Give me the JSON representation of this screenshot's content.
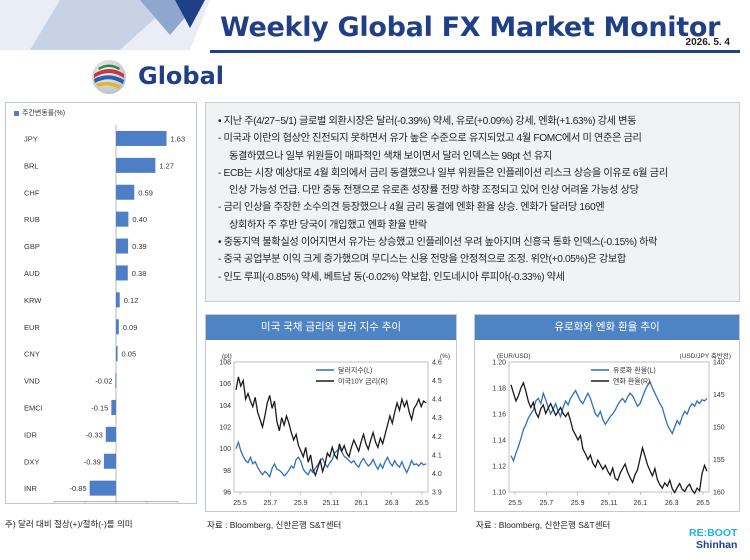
{
  "header": {
    "title": "Weekly Global FX Market Monitor",
    "date": "2026. 5. 4"
  },
  "section": {
    "title": "Global"
  },
  "summary": {
    "lines": [
      {
        "style": "lead",
        "text": "지난 주(4/27~5/1) 글로벌 외환시장은 달러(-0.39%) 약세, 유로(+0.09%) 강세, 엔화(+1.63%) 강세 변동"
      },
      {
        "style": "dash",
        "text": "미국과 이란의 협상안 진전되지 못하면서 유가 높은 수준으로 유지되었고 4월 FOMC에서 미 연준은 금리"
      },
      {
        "style": "cont",
        "text": "동결하였으나 일부 위원들이 매파적인 색채 보이면서 달러 인덱스는 98pt 선 유지"
      },
      {
        "style": "dash",
        "text": "ECB는 시장 예상대로 4월 회의에서 금리 동결했으나 일부 위원들은 인플레이션 리스크 상승을 이유로 6월 금리"
      },
      {
        "style": "cont",
        "text": "인상 가능성 언급. 다만 중동 전쟁으로 유로존 성장률 전망 하향 조정되고 있어 인상 어려울 가능성 상당"
      },
      {
        "style": "dash",
        "text": "금리 인상을 주장한 소수의견 등장했으나 4월 금리 동결에 엔화 환율 상승. 엔화가 달러당 160엔"
      },
      {
        "style": "cont",
        "text": "상회하자 주 후반 당국이 개입했고 엔화 환율 반락"
      },
      {
        "style": "lead",
        "text": "중동지역 불확실성 이어지면서 유가는 상승했고 인플레이션 우려 높아지며 신흥국 통화 인덱스(-0.15%) 하락"
      },
      {
        "style": "dash",
        "text": "중국 공업부분 이익 크게 증가했으며 무디스는 신용 전망을 안정적으로 조정. 위안(+0.05%)은 강보합"
      },
      {
        "style": "dash",
        "text": "인도 루피(-0.85%) 약세, 베트남 동(-0.02%) 약보합, 인도네시아 루피아(-0.33%) 약세"
      }
    ]
  },
  "bar_chart_note": "주) 달러 대비 절상(+)/절하(-)를 의미",
  "panels": [
    {
      "title": "미국 국채 금리와 달러 지수 추이",
      "source": "자료 : Bloomberg, 신한은행 S&T센터"
    },
    {
      "title": "유로화와 엔화 환율 추이",
      "source": "자료 : Bloomberg, 신한은행 S&T센터"
    }
  ],
  "logo": {
    "line1": "RE:BOOT",
    "line2": "Shinhan"
  },
  "colors": {
    "brand": "#1f3f86",
    "bar": "#4e7ec5",
    "panel_header": "#4f84c4",
    "series_blue": "#2f6fbf",
    "series_black": "#1a1a1a"
  },
  "chart_data": [
    {
      "type": "bar",
      "orientation": "horizontal",
      "legend": [
        "주간변동률(%)"
      ],
      "categories": [
        "JPY",
        "BRL",
        "CHF",
        "RUB",
        "GBP",
        "AUD",
        "KRW",
        "EUR",
        "CNY",
        "VND",
        "EMCI",
        "IDR",
        "DXY",
        "INR"
      ],
      "values": [
        1.63,
        1.27,
        0.59,
        0.4,
        0.39,
        0.38,
        0.12,
        0.09,
        0.05,
        -0.02,
        -0.15,
        -0.33,
        -0.39,
        -0.85
      ],
      "value_labels": [
        "1.63",
        "1.27",
        "0.59",
        "0.40",
        "0.39",
        "0.38",
        "0.12",
        "0.09",
        "0.05",
        "-0.02",
        "-0.15",
        "-0.33",
        "-0.39",
        "-0.85"
      ],
      "xlim": [
        -2,
        2
      ],
      "xticks": [
        "-2",
        "-1",
        "0",
        "1",
        "2"
      ]
    },
    {
      "type": "line",
      "left_unit": "(pt)",
      "right_unit": "(%)",
      "x_ticks": [
        "25.5",
        "25.7",
        "25.9",
        "25.11",
        "26.1",
        "26.3",
        "26.5"
      ],
      "ylim_left": [
        96,
        108
      ],
      "yticks_left": [
        "96",
        "98",
        "100",
        "102",
        "104",
        "106",
        "108"
      ],
      "ylim_right": [
        3.9,
        4.6
      ],
      "yticks_right": [
        "3.9",
        "4.0",
        "4.1",
        "4.2",
        "4.3",
        "4.4",
        "4.5",
        "4.6"
      ],
      "series": [
        {
          "name": "달러지수(L)",
          "axis": "left",
          "color": "#2f6fbf",
          "values": [
            100.0,
            100.6,
            99.8,
            99.3,
            98.9,
            98.7,
            99.2,
            98.6,
            98.8,
            98.3,
            97.9,
            97.6,
            97.9,
            97.7,
            97.4,
            98.2,
            98.6,
            98.1,
            98.0,
            97.8,
            97.5,
            97.7,
            98.0,
            98.4,
            98.2,
            99.0,
            99.2,
            98.8,
            98.1,
            97.8,
            97.6,
            98.1,
            97.8,
            98.2,
            98.5,
            98.9,
            99.1,
            98.6,
            98.3,
            98.7,
            99.0,
            99.6,
            99.8,
            100.1,
            99.7,
            99.3,
            99.1,
            98.9,
            98.7,
            98.9,
            98.5,
            98.3,
            98.8,
            99.1,
            98.7,
            98.4,
            98.6,
            99.0,
            98.5,
            98.1,
            98.6,
            98.2,
            98.8,
            99.2,
            98.7,
            98.4,
            98.9,
            98.5,
            98.3,
            98.8,
            98.2,
            97.8,
            98.3,
            98.9,
            98.5,
            98.6,
            98.4,
            98.7,
            98.5,
            98.6
          ]
        },
        {
          "name": "미국10Y 금리(R)",
          "axis": "right",
          "color": "#1a1a1a",
          "values": [
            4.45,
            4.52,
            4.47,
            4.5,
            4.4,
            4.43,
            4.39,
            4.36,
            4.41,
            4.33,
            4.29,
            4.25,
            4.31,
            4.38,
            4.42,
            4.35,
            4.39,
            4.28,
            4.23,
            4.3,
            4.26,
            4.31,
            4.27,
            4.22,
            4.18,
            4.21,
            4.15,
            4.12,
            4.09,
            4.14,
            4.06,
            4.1,
            4.02,
            3.99,
            4.03,
            4.07,
            4.01,
            4.05,
            4.11,
            4.09,
            4.14,
            4.1,
            4.08,
            4.16,
            4.12,
            4.15,
            4.11,
            4.09,
            4.14,
            4.18,
            4.15,
            4.12,
            4.17,
            4.21,
            4.16,
            4.13,
            4.18,
            4.22,
            4.17,
            4.14,
            4.19,
            4.16,
            4.21,
            4.26,
            4.31,
            4.27,
            4.33,
            4.38,
            4.34,
            4.4,
            4.36,
            4.39,
            4.33,
            4.29,
            4.35,
            4.37,
            4.4,
            4.36,
            4.39,
            4.38
          ]
        }
      ]
    },
    {
      "type": "line",
      "left_unit": "(EUR/USD)",
      "right_unit": "(USD/JPY 축반전)",
      "x_ticks": [
        "25.5",
        "25.7",
        "25.9",
        "25.11",
        "26.1",
        "26.3",
        "26.5"
      ],
      "ylim_left": [
        1.1,
        1.2
      ],
      "yticks_left": [
        "1.10",
        "1.12",
        "1.14",
        "1.16",
        "1.18",
        "1.20"
      ],
      "ylim_right": [
        160,
        140
      ],
      "yticks_right": [
        "140",
        "145",
        "150",
        "155",
        "160"
      ],
      "series": [
        {
          "name": "유로화 환율(L)",
          "axis": "left",
          "color": "#2f6fbf",
          "values": [
            1.128,
            1.124,
            1.13,
            1.135,
            1.141,
            1.148,
            1.152,
            1.157,
            1.16,
            1.163,
            1.17,
            1.172,
            1.168,
            1.176,
            1.171,
            1.165,
            1.16,
            1.164,
            1.168,
            1.162,
            1.158,
            1.165,
            1.17,
            1.167,
            1.172,
            1.175,
            1.178,
            1.174,
            1.17,
            1.168,
            1.172,
            1.176,
            1.172,
            1.166,
            1.16,
            1.158,
            1.162,
            1.156,
            1.152,
            1.155,
            1.158,
            1.16,
            1.163,
            1.167,
            1.17,
            1.172,
            1.169,
            1.173,
            1.176,
            1.174,
            1.17,
            1.166,
            1.168,
            1.173,
            1.178,
            1.182,
            1.185,
            1.18,
            1.176,
            1.172,
            1.168,
            1.165,
            1.158,
            1.152,
            1.148,
            1.145,
            1.15,
            1.155,
            1.152,
            1.158,
            1.162,
            1.16,
            1.165,
            1.168,
            1.166,
            1.17,
            1.168,
            1.171,
            1.17,
            1.172
          ]
        },
        {
          "name": "엔화 환율(R)",
          "axis": "right",
          "color": "#1a1a1a",
          "values": [
            143.5,
            144.8,
            146.0,
            145.2,
            144.0,
            143.2,
            144.5,
            146.1,
            147.0,
            146.2,
            147.8,
            148.5,
            147.2,
            146.6,
            147.9,
            147.1,
            146.4,
            147.3,
            148.2,
            147.6,
            147.0,
            147.9,
            148.4,
            147.8,
            149.0,
            150.5,
            151.2,
            152.0,
            151.3,
            153.4,
            154.1,
            155.0,
            154.3,
            155.6,
            156.2,
            155.1,
            155.8,
            156.5,
            155.9,
            156.8,
            157.4,
            156.3,
            157.9,
            158.2,
            157.1,
            156.4,
            155.7,
            156.9,
            157.8,
            158.5,
            157.3,
            156.6,
            154.9,
            153.2,
            154.5,
            155.8,
            156.7,
            157.5,
            156.4,
            158.1,
            158.9,
            159.4,
            158.6,
            159.1,
            158.2,
            159.5,
            160.1,
            159.3,
            158.7,
            159.6,
            159.9,
            159.2,
            158.8,
            159.7,
            160.2,
            159.4,
            159.8,
            157.2,
            155.9,
            156.8
          ]
        }
      ]
    }
  ]
}
